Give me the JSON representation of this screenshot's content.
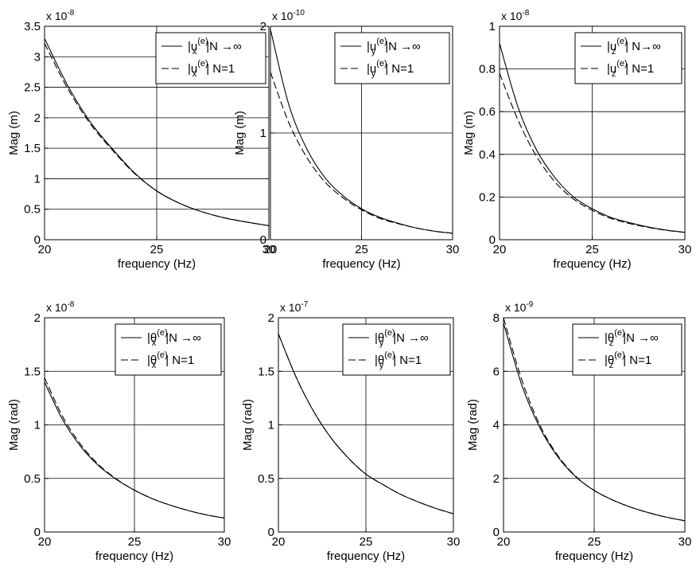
{
  "chart_data": [
    {
      "type": "line",
      "xlabel": "frequency (Hz)",
      "ylabel": "Mag (m)",
      "multiplier_base": "x 10",
      "multiplier_exp": "-8",
      "xlim": [
        20,
        30
      ],
      "ylim": [
        0,
        3.5
      ],
      "xticks": [
        20,
        25,
        30
      ],
      "xtick_labels": [
        "20",
        "25",
        "30"
      ],
      "yticks": [
        0,
        0.5,
        1,
        1.5,
        2,
        2.5,
        3,
        3.5
      ],
      "ytick_labels": [
        "0",
        "0.5",
        "1",
        "1.5",
        "2",
        "2.5",
        "3",
        "3.5"
      ],
      "grid": true,
      "legend_position": "top-right",
      "series": [
        {
          "style": "solid",
          "legend": {
            "base": "|u",
            "sub": "x",
            "sup": "(e)",
            "suffix": "|N →∞"
          },
          "x": [
            20,
            21,
            22,
            23,
            24,
            25,
            26,
            27,
            28,
            29,
            30
          ],
          "values": [
            3.3,
            2.55,
            1.95,
            1.5,
            1.1,
            0.8,
            0.6,
            0.46,
            0.36,
            0.29,
            0.23
          ]
        },
        {
          "style": "dashed",
          "legend": {
            "base": "|u",
            "sub": "x",
            "sup": "(e)",
            "suffix": "| N=1"
          },
          "x": [
            20,
            21,
            22,
            23,
            24,
            25,
            26,
            27,
            28,
            29,
            30
          ],
          "values": [
            3.22,
            2.5,
            1.92,
            1.48,
            1.09,
            0.8,
            0.6,
            0.46,
            0.36,
            0.29,
            0.23
          ]
        }
      ]
    },
    {
      "type": "line",
      "xlabel": "frequency (Hz)",
      "ylabel": "Mag (m)",
      "multiplier_base": "x 10",
      "multiplier_exp": "-10",
      "xlim": [
        20,
        30
      ],
      "ylim": [
        0,
        2
      ],
      "xticks": [
        20,
        25,
        30
      ],
      "xtick_labels": [
        "20",
        "25",
        "30"
      ],
      "yticks": [
        0,
        1,
        2
      ],
      "ytick_labels": [
        "0",
        "1",
        "2"
      ],
      "grid": true,
      "legend_position": "top-right",
      "series": [
        {
          "style": "solid",
          "legend": {
            "base": "|u",
            "sub": "y",
            "sup": "(e)",
            "suffix": "|N →∞"
          },
          "x": [
            20,
            21,
            22,
            23,
            24,
            25,
            26,
            27,
            28,
            29,
            30
          ],
          "values": [
            1.97,
            1.27,
            0.85,
            0.58,
            0.41,
            0.29,
            0.21,
            0.155,
            0.11,
            0.08,
            0.06
          ]
        },
        {
          "style": "dashed",
          "legend": {
            "base": "|u",
            "sub": "y",
            "sup": "(e)",
            "suffix": "| N=1"
          },
          "x": [
            20,
            21,
            22,
            23,
            24,
            25,
            26,
            27,
            28,
            29,
            30
          ],
          "values": [
            1.57,
            1.1,
            0.77,
            0.54,
            0.39,
            0.28,
            0.2,
            0.15,
            0.11,
            0.08,
            0.06
          ]
        }
      ]
    },
    {
      "type": "line",
      "xlabel": "frequency (Hz)",
      "ylabel": "Mag (m)",
      "multiplier_base": "x 10",
      "multiplier_exp": "-8",
      "xlim": [
        20,
        30
      ],
      "ylim": [
        0,
        1
      ],
      "xticks": [
        20,
        25,
        30
      ],
      "xtick_labels": [
        "20",
        "25",
        "30"
      ],
      "yticks": [
        0,
        0.2,
        0.4,
        0.6,
        0.8,
        1
      ],
      "ytick_labels": [
        "0",
        "0.2",
        "0.4",
        "0.6",
        "0.8",
        "1"
      ],
      "grid": true,
      "legend_position": "top-right",
      "series": [
        {
          "style": "solid",
          "legend": {
            "base": "|u",
            "sub": "z",
            "sup": "(e)",
            "suffix": "| N→∞"
          },
          "x": [
            20,
            21,
            22,
            23,
            24,
            25,
            26,
            27,
            28,
            29,
            30
          ],
          "values": [
            0.92,
            0.62,
            0.42,
            0.29,
            0.2,
            0.145,
            0.105,
            0.08,
            0.06,
            0.045,
            0.035
          ]
        },
        {
          "style": "dashed",
          "legend": {
            "base": "|u",
            "sub": "z",
            "sup": "(e)",
            "suffix": "| N=1"
          },
          "x": [
            20,
            21,
            22,
            23,
            24,
            25,
            26,
            27,
            28,
            29,
            30
          ],
          "values": [
            0.78,
            0.56,
            0.39,
            0.27,
            0.19,
            0.138,
            0.1,
            0.076,
            0.058,
            0.044,
            0.034
          ]
        }
      ]
    },
    {
      "type": "line",
      "xlabel": "frequency (Hz)",
      "ylabel": "Mag (rad)",
      "multiplier_base": "x 10",
      "multiplier_exp": "-8",
      "xlim": [
        20,
        30
      ],
      "ylim": [
        0,
        2
      ],
      "xticks": [
        20,
        25,
        30
      ],
      "xtick_labels": [
        "20",
        "25",
        "30"
      ],
      "yticks": [
        0,
        0.5,
        1,
        1.5,
        2
      ],
      "ytick_labels": [
        "0",
        "0.5",
        "1",
        "1.5",
        "2"
      ],
      "grid": true,
      "legend_position": "top-right",
      "series": [
        {
          "style": "solid",
          "legend": {
            "base": "|θ",
            "sub": "x",
            "sup": "(e)",
            "suffix": "|N →∞"
          },
          "x": [
            20,
            21,
            22,
            23,
            24,
            25,
            26,
            27,
            28,
            29,
            30
          ],
          "values": [
            1.4,
            1.05,
            0.8,
            0.62,
            0.49,
            0.39,
            0.31,
            0.25,
            0.2,
            0.16,
            0.13
          ]
        },
        {
          "style": "dashed",
          "legend": {
            "base": "|θ",
            "sub": "x",
            "sup": "(e)",
            "suffix": "| N=1"
          },
          "x": [
            20,
            21,
            22,
            23,
            24,
            25,
            26,
            27,
            28,
            29,
            30
          ],
          "values": [
            1.44,
            1.08,
            0.82,
            0.63,
            0.495,
            0.39,
            0.31,
            0.25,
            0.2,
            0.16,
            0.13
          ]
        }
      ]
    },
    {
      "type": "line",
      "xlabel": "frequency (Hz)",
      "ylabel": "Mag (rad)",
      "multiplier_base": "x 10",
      "multiplier_exp": "-7",
      "xlim": [
        20,
        30
      ],
      "ylim": [
        0,
        2
      ],
      "xticks": [
        20,
        25,
        30
      ],
      "xtick_labels": [
        "20",
        "25",
        "30"
      ],
      "yticks": [
        0,
        0.5,
        1,
        1.5,
        2
      ],
      "ytick_labels": [
        "0",
        "0.5",
        "1",
        "1.5",
        "2"
      ],
      "grid": true,
      "legend_position": "top-right",
      "series": [
        {
          "style": "solid",
          "legend": {
            "base": "|θ",
            "sub": "y",
            "sup": "(e)",
            "suffix": "|N →∞"
          },
          "x": [
            20,
            21,
            22,
            23,
            24,
            25,
            26,
            27,
            28,
            29,
            30
          ],
          "values": [
            1.85,
            1.45,
            1.13,
            0.88,
            0.69,
            0.54,
            0.44,
            0.35,
            0.28,
            0.22,
            0.17
          ]
        },
        {
          "style": "dashed",
          "legend": {
            "base": "|θ",
            "sub": "y",
            "sup": "(e)",
            "suffix": "| N=1"
          },
          "x": [
            20,
            21,
            22,
            23,
            24,
            25,
            26,
            27,
            28,
            29,
            30
          ],
          "values": [
            1.85,
            1.45,
            1.13,
            0.88,
            0.69,
            0.54,
            0.44,
            0.35,
            0.28,
            0.22,
            0.17
          ]
        }
      ]
    },
    {
      "type": "line",
      "xlabel": "frequency (Hz)",
      "ylabel": "Mag (rad)",
      "multiplier_base": "x 10",
      "multiplier_exp": "-9",
      "xlim": [
        20,
        30
      ],
      "ylim": [
        0,
        8
      ],
      "xticks": [
        20,
        25,
        30
      ],
      "xtick_labels": [
        "20",
        "25",
        "30"
      ],
      "yticks": [
        0,
        2,
        4,
        6,
        8
      ],
      "ytick_labels": [
        "0",
        "2",
        "4",
        "6",
        "8"
      ],
      "grid": true,
      "legend_position": "top-right",
      "series": [
        {
          "style": "solid",
          "legend": {
            "base": "|θ",
            "sub": "z",
            "sup": "(e)",
            "suffix": "|N →∞"
          },
          "x": [
            20,
            21,
            22,
            23,
            24,
            25,
            26,
            27,
            28,
            29,
            30
          ],
          "values": [
            7.8,
            5.5,
            3.9,
            2.8,
            2.05,
            1.55,
            1.2,
            0.93,
            0.72,
            0.55,
            0.42
          ]
        },
        {
          "style": "dashed",
          "legend": {
            "base": "|θ",
            "sub": "z",
            "sup": "(e)",
            "suffix": "| N=1"
          },
          "x": [
            20,
            21,
            22,
            23,
            24,
            25,
            26,
            27,
            28,
            29,
            30
          ],
          "values": [
            8.0,
            5.7,
            4.0,
            2.85,
            2.07,
            1.55,
            1.2,
            0.93,
            0.72,
            0.55,
            0.42
          ]
        }
      ]
    }
  ]
}
